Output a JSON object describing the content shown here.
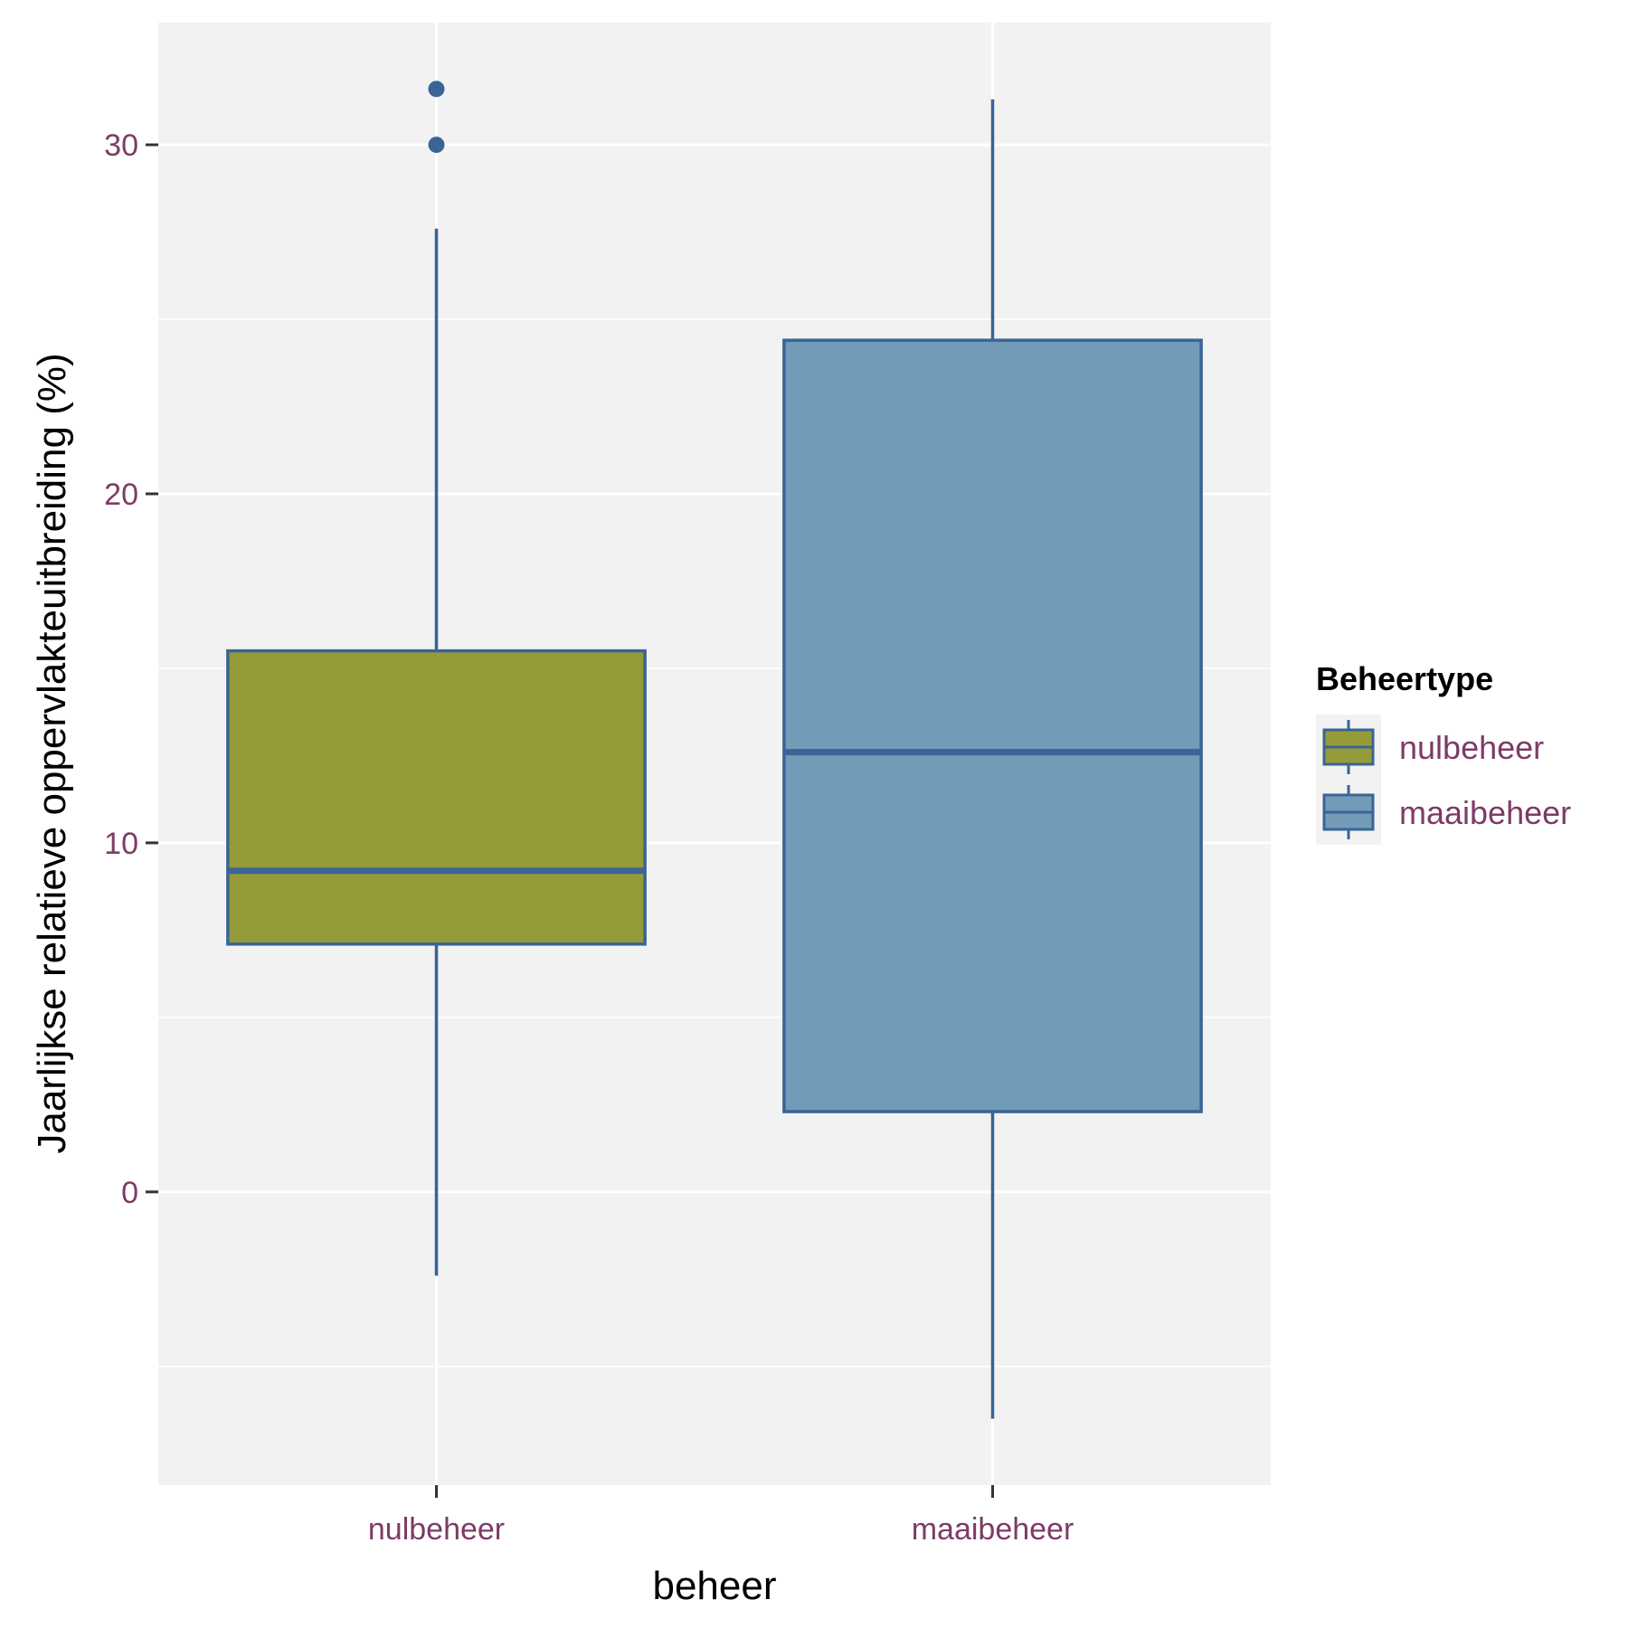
{
  "chart_data": {
    "type": "box",
    "xlabel": "beheer",
    "ylabel": "Jaarlijkse relatieve oppervlakteuitbreiding (%)",
    "categories": [
      "nulbeheer",
      "maaibeheer"
    ],
    "ylim": [
      -8.4,
      33.5
    ],
    "yticks": [
      0,
      10,
      20,
      30
    ],
    "grid": true,
    "boxes": [
      {
        "category": "nulbeheer",
        "whisker_low": -2.4,
        "q1": 7.1,
        "median": 9.2,
        "q3": 15.5,
        "whisker_high": 27.6,
        "outliers": [
          31.6,
          30.0
        ],
        "fill": "#969b3a"
      },
      {
        "category": "maaibeheer",
        "whisker_low": -6.5,
        "q1": 2.3,
        "median": 12.6,
        "q3": 24.4,
        "whisker_high": 31.3,
        "outliers": [],
        "fill": "#729bb7"
      }
    ],
    "line_color": "#3a6496",
    "tick_label_color": "#7d3b66",
    "panel_background": "#f2f2f2",
    "legend": {
      "title": "Beheertype",
      "position": "right",
      "entries": [
        {
          "label": "nulbeheer",
          "fill": "#969b3a"
        },
        {
          "label": "maaibeheer",
          "fill": "#729bb7"
        }
      ]
    }
  }
}
